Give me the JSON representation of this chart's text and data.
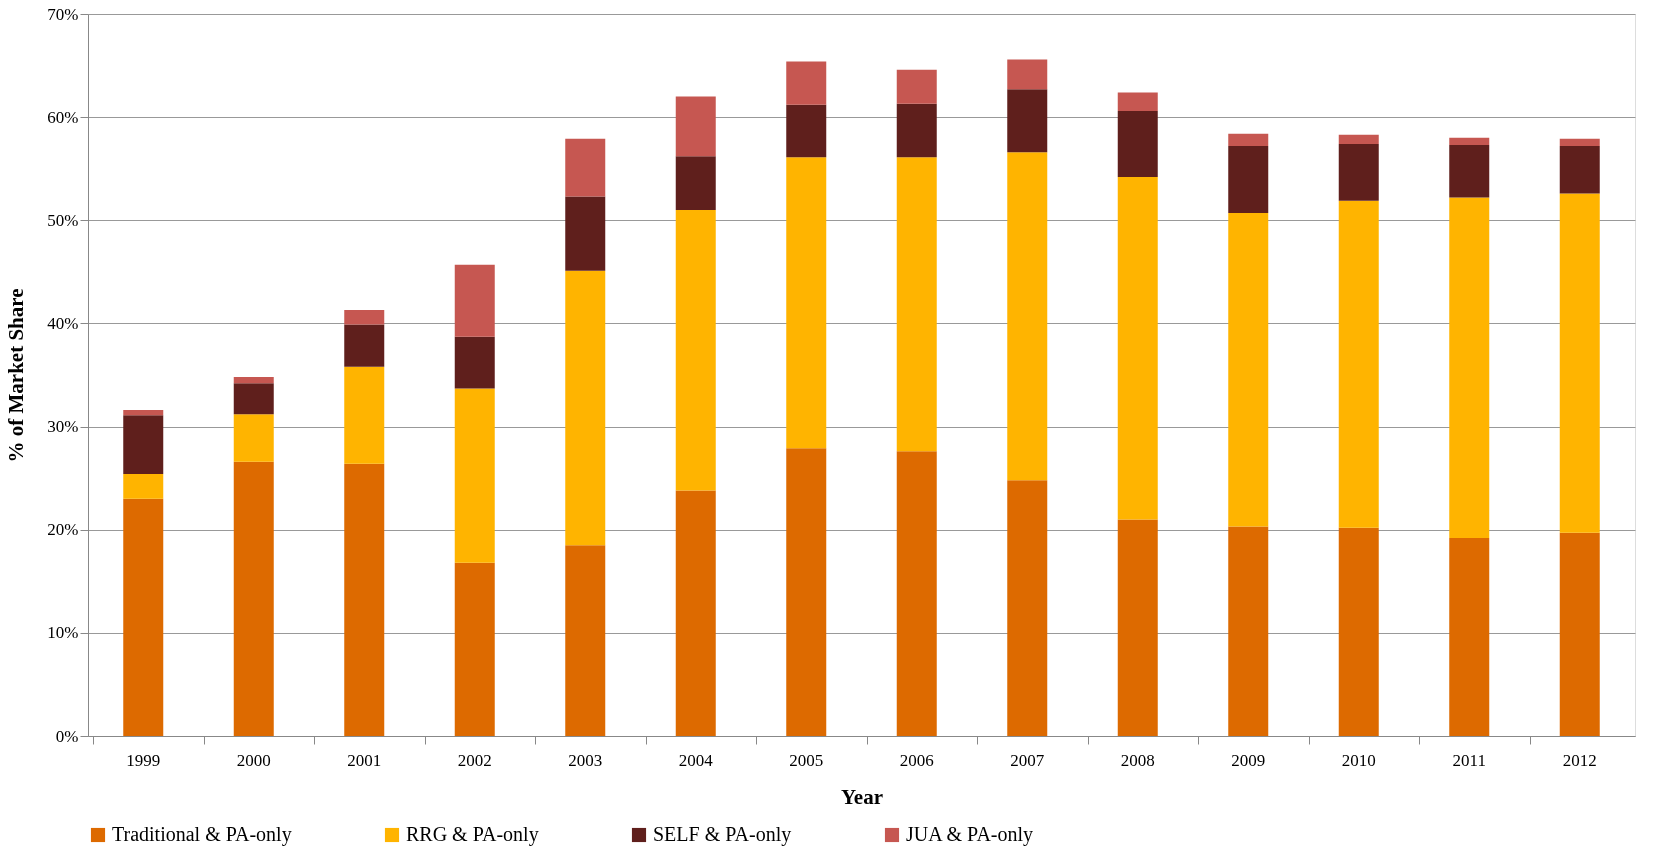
{
  "chart_data": {
    "type": "bar",
    "stacked": true,
    "xlabel": "Year",
    "ylabel": "% of Market Share",
    "categories": [
      "1999",
      "2000",
      "2001",
      "2002",
      "2003",
      "2004",
      "2005",
      "2006",
      "2007",
      "2008",
      "2009",
      "2010",
      "2011",
      "2012"
    ],
    "series": [
      {
        "name": "Traditional & PA-only",
        "color": "#dd6a00",
        "values": [
          23.0,
          26.6,
          26.4,
          16.8,
          18.5,
          23.8,
          27.9,
          27.6,
          24.8,
          21.0,
          20.3,
          20.2,
          19.2,
          19.7
        ]
      },
      {
        "name": "RRG & PA-only",
        "color": "#ffb400",
        "values": [
          2.4,
          4.6,
          9.4,
          16.9,
          26.6,
          27.2,
          28.2,
          28.5,
          31.8,
          33.2,
          30.4,
          31.7,
          33.0,
          32.9
        ]
      },
      {
        "name": "SELF & PA-only",
        "color": "#5f1f1c",
        "values": [
          5.7,
          3.0,
          4.1,
          5.0,
          7.2,
          5.2,
          5.1,
          5.2,
          6.1,
          6.4,
          6.5,
          5.5,
          5.1,
          4.6
        ]
      },
      {
        "name": "JUA & PA-only",
        "color": "#c65751",
        "values": [
          0.5,
          0.6,
          1.4,
          7.0,
          5.6,
          5.8,
          4.2,
          3.3,
          2.9,
          1.8,
          1.2,
          0.9,
          0.7,
          0.7
        ]
      }
    ],
    "ylim": [
      0,
      70
    ],
    "yticks": [
      {
        "value": 0,
        "label": "0%"
      },
      {
        "value": 10,
        "label": "10%"
      },
      {
        "value": 20,
        "label": "20%"
      },
      {
        "value": 30,
        "label": "30%"
      },
      {
        "value": 40,
        "label": "40%"
      },
      {
        "value": 50,
        "label": "50%"
      },
      {
        "value": 60,
        "label": "60%"
      },
      {
        "value": 70,
        "label": "70%"
      }
    ],
    "grid": "y",
    "legend": "bottom"
  }
}
